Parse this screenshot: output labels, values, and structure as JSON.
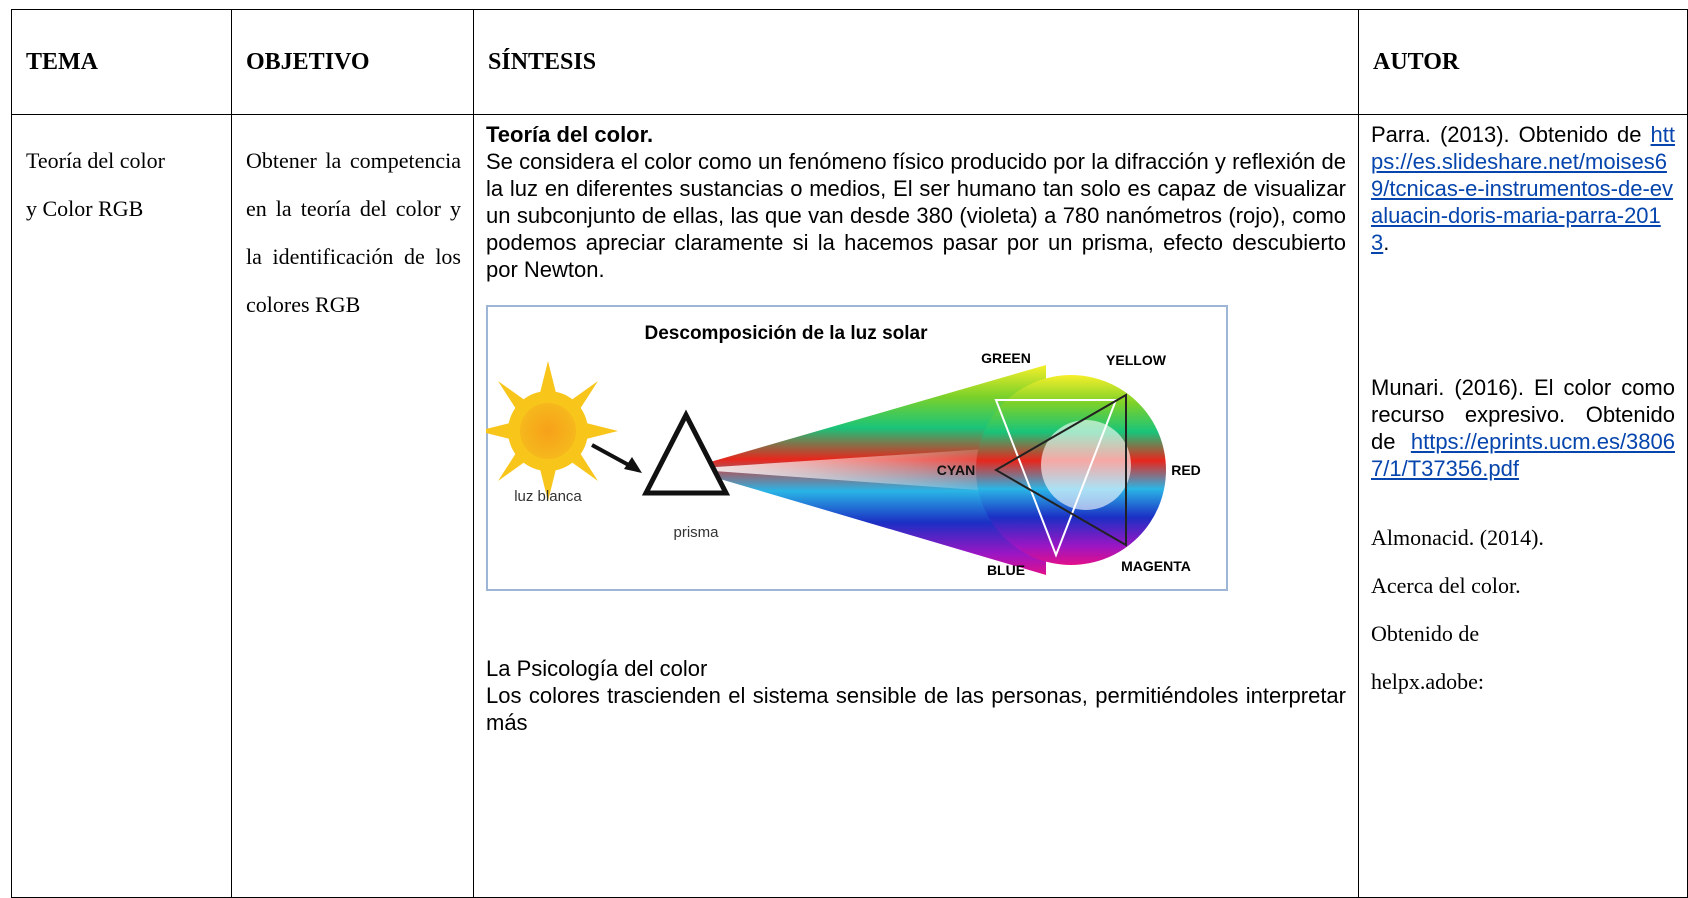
{
  "table": {
    "headers": [
      "TEMA",
      "OBJETIVO",
      "SÍNTESIS",
      "AUTOR"
    ],
    "tema": "Teoría del color y Color RGB",
    "objetivo": "Obtener la competencia en la teoría del color y la identificación de los colores RGB",
    "sintesis": {
      "heading1": "Teoría del color.",
      "paragraph1": "Se considera el color como un fenómeno físico producido por la difracción y reflexión de la luz en diferentes sustancias o medios, El ser humano tan solo es capaz de visualizar un subconjunto de ellas, las que van desde 380 (violeta) a 780 nanómetros (rojo), como podemos apreciar claramente si la hacemos pasar por un prisma, efecto descubierto por Newton.",
      "figure": {
        "title": "Descomposición de la luz solar",
        "sun": "luz blanca",
        "prism": "prisma",
        "green": "GREEN",
        "yellow": "YELLOW",
        "cyan": "CYAN",
        "red": "RED",
        "blue": "BLUE",
        "magenta": "MAGENTA"
      },
      "heading2": "La Psicología del color",
      "paragraph2": "Los colores trascienden el sistema sensible de las personas, permitiéndoles interpretar más"
    },
    "autor": [
      {
        "text": "Parra. (2013). Obtenido de",
        "link": "https://es.slideshare.net/moises69/tcnicas-e-instrumentos-de-evaluacin-doris-maria-parra-2013",
        "suffix": "."
      },
      {
        "text": "Munari. (2016). El color como recurso expresivo. Obtenido de",
        "link": "https://eprints.ucm.es/38067/1/T37356.pdf"
      },
      {
        "lines": [
          "Almonacid. (2014).",
          "Acerca del color.",
          "Obtenido de",
          "helpx.adobe:"
        ]
      }
    ]
  }
}
